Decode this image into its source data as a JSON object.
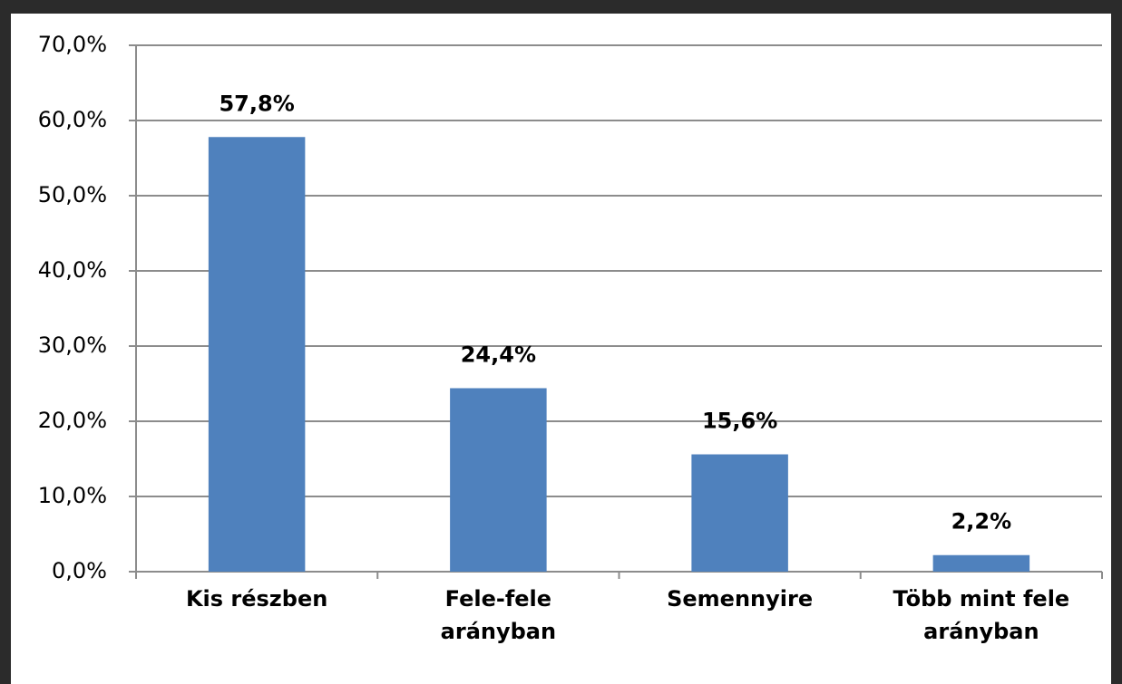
{
  "chart_data": {
    "type": "bar",
    "categories": [
      "Kis részben",
      "Fele-fele arányban",
      "Semennyire",
      "Több mint fele arányban"
    ],
    "values": [
      57.8,
      24.4,
      15.6,
      2.2
    ],
    "value_labels": [
      "57,8%",
      "24,4%",
      "15,6%",
      "2,2%"
    ],
    "color": "#4f81bd",
    "ylim": [
      0,
      70
    ],
    "yticks": [
      {
        "value": 0,
        "label": "0,0%"
      },
      {
        "value": 10,
        "label": "10,0%"
      },
      {
        "value": 20,
        "label": "20,0%"
      },
      {
        "value": 30,
        "label": "30,0%"
      },
      {
        "value": 40,
        "label": "40,0%"
      },
      {
        "value": 50,
        "label": "50,0%"
      },
      {
        "value": 60,
        "label": "60,0%"
      },
      {
        "value": 70,
        "label": "70,0%"
      }
    ],
    "grid": true
  }
}
